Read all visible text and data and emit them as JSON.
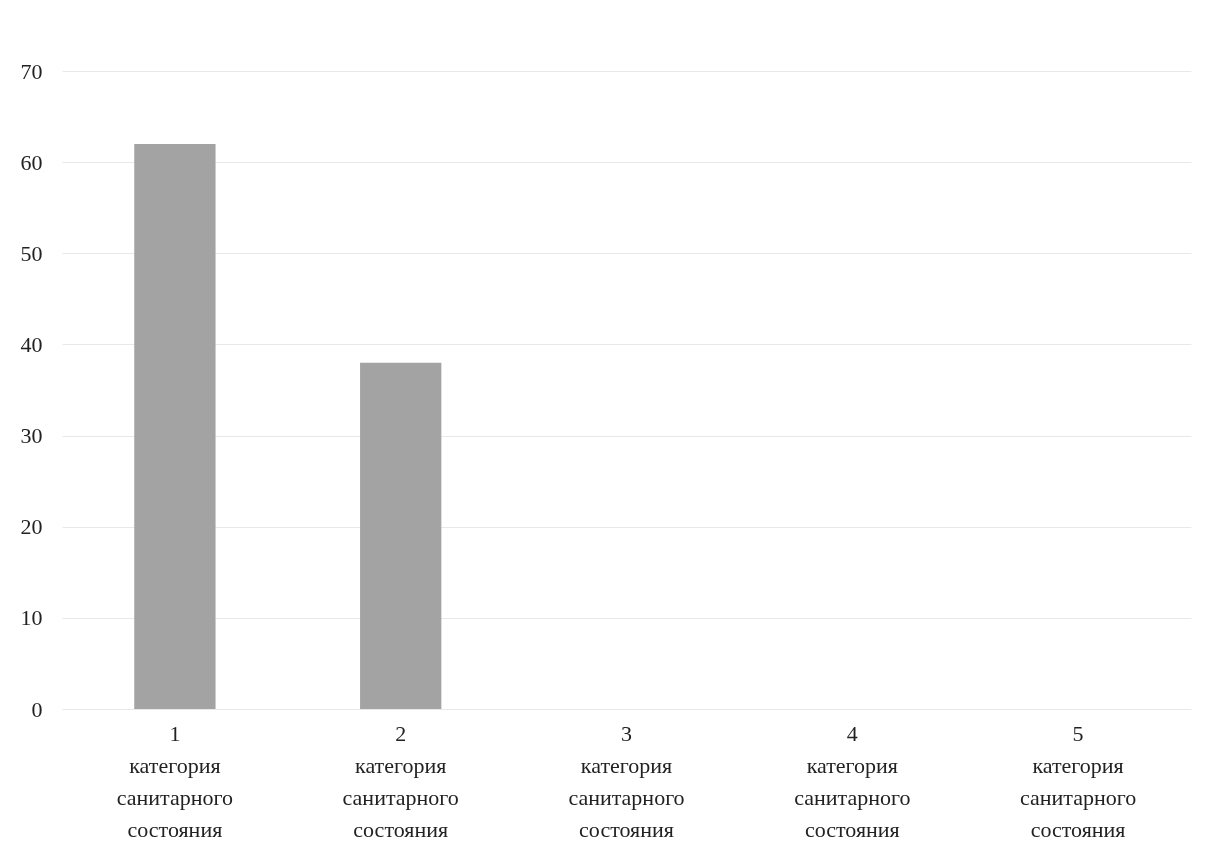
{
  "chart_data": {
    "type": "bar",
    "categories": [
      "1 категория санитарного состояния",
      "2 категория санитарного состояния",
      "3 категория санитарного состояния",
      "4 категория санитарного состояния",
      "5 категория санитарного состояния"
    ],
    "values": [
      62,
      38,
      0,
      0,
      0
    ],
    "color": "#a3a3a3",
    "ylim": [
      0,
      70
    ],
    "yticks": [
      0,
      10,
      20,
      30,
      40,
      50,
      60,
      70
    ],
    "grid": "y"
  }
}
